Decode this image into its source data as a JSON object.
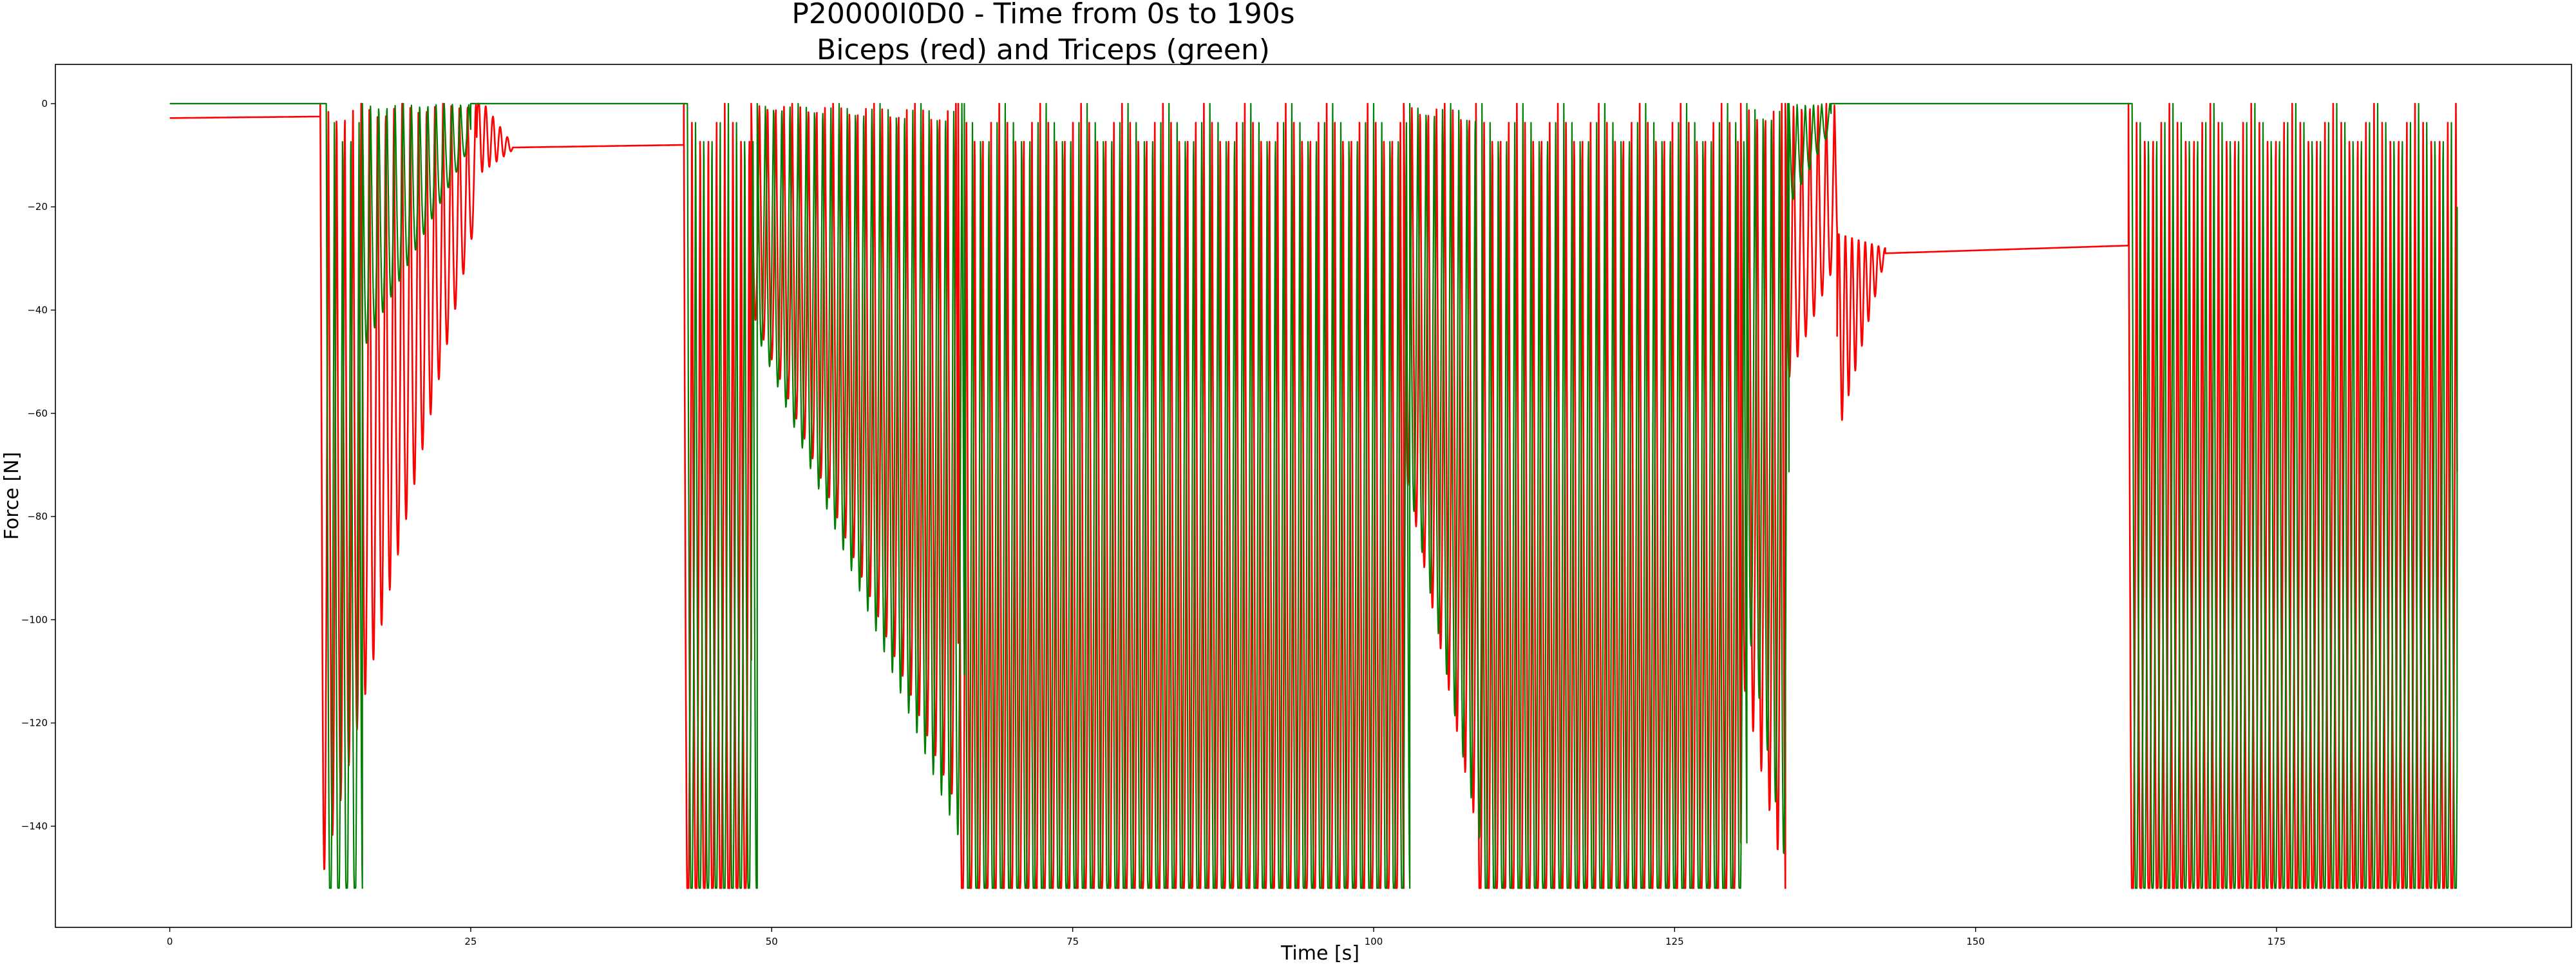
{
  "chart_data": {
    "type": "line",
    "title": "P20000I0D0 - Time from 0s to 190s",
    "subtitle": "Biceps (red) and Triceps (green)",
    "xlabel": "Time [s]",
    "ylabel": "Force [N]",
    "xlim": [
      -9.5,
      199.5
    ],
    "ylim": [
      -159.6,
      7.6
    ],
    "xticks": [
      0,
      25,
      50,
      75,
      100,
      125,
      150,
      175
    ],
    "yticks": [
      0,
      -20,
      -40,
      -60,
      -80,
      -100,
      -120,
      -140
    ],
    "xtick_labels": [
      "0",
      "25",
      "50",
      "75",
      "100",
      "125",
      "150",
      "175"
    ],
    "ytick_labels": [
      "0",
      "−20",
      "−40",
      "−60",
      "−80",
      "−100",
      "−120",
      "−140"
    ],
    "grid": false,
    "legend": "none",
    "series": [
      {
        "color": "#ff0000",
        "segments": [
          {
            "type": "flat",
            "t0": 0,
            "t1": 12.5,
            "from": -2.8,
            "to": -2.5
          },
          {
            "type": "osc",
            "t0": 12.5,
            "t1": 25.5,
            "period": 0.68,
            "peak_start": -152,
            "peak_end": -22,
            "clip": -152
          },
          {
            "type": "decay",
            "t0": 25.5,
            "t1": 28.5,
            "period": 0.6,
            "amp_start": 8,
            "amp_end": 0.5,
            "center_start": -6,
            "center_end": -8.5
          },
          {
            "type": "flat",
            "t0": 28.5,
            "t1": 42.7,
            "from": -8.5,
            "to": -8.0
          },
          {
            "type": "osc",
            "t0": 42.7,
            "t1": 48.3,
            "period": 0.68,
            "peak_start": -152,
            "peak_end": -152,
            "clip": -152
          },
          {
            "type": "osc",
            "t0": 48.3,
            "t1": 65.5,
            "period": 0.68,
            "peak_start": -40,
            "peak_end": -137,
            "clip": -152
          },
          {
            "type": "osc",
            "t0": 65.5,
            "t1": 102.5,
            "period": 0.68,
            "peak_start": -152,
            "peak_end": -152,
            "clip": -152
          },
          {
            "type": "osc",
            "t0": 102.5,
            "t1": 108.5,
            "period": 0.68,
            "peak_start": -70,
            "peak_end": -140,
            "clip": -152
          },
          {
            "type": "osc",
            "t0": 108.5,
            "t1": 130.5,
            "period": 0.68,
            "peak_start": -152,
            "peak_end": -152,
            "clip": -152
          },
          {
            "type": "osc",
            "t0": 130.5,
            "t1": 134.2,
            "period": 0.68,
            "peak_start": -110,
            "peak_end": -152,
            "clip": -152
          },
          {
            "type": "osc",
            "t0": 134.2,
            "t1": 138.5,
            "period": 0.68,
            "peak_start": -55,
            "peak_end": -30,
            "clip": -152
          },
          {
            "type": "decay",
            "t0": 138.5,
            "t1": 142.5,
            "period": 0.55,
            "amp_start": 20,
            "amp_end": 1,
            "center_start": -45,
            "center_end": -29
          },
          {
            "type": "flat",
            "t0": 142.5,
            "t1": 162.7,
            "from": -29,
            "to": -27.5
          },
          {
            "type": "osc",
            "t0": 162.7,
            "t1": 190,
            "period": 0.68,
            "peak_start": -152,
            "peak_end": -152,
            "clip": -152
          }
        ]
      },
      {
        "color": "#008000",
        "segments": [
          {
            "type": "flat",
            "t0": 0,
            "t1": 13.0,
            "from": 0,
            "to": 0
          },
          {
            "type": "osc",
            "t0": 13.0,
            "t1": 16.0,
            "period": 0.68,
            "peak_start": -152,
            "peak_end": -152,
            "clip": -152
          },
          {
            "type": "osc",
            "t0": 16.0,
            "t1": 25.0,
            "period": 0.68,
            "peak_start": -48,
            "peak_end": -8,
            "clip": -152
          },
          {
            "type": "flat",
            "t0": 25.0,
            "t1": 43.0,
            "from": 0,
            "to": 0
          },
          {
            "type": "osc",
            "t0": 43.0,
            "t1": 48.8,
            "period": 0.68,
            "peak_start": -152,
            "peak_end": -152,
            "clip": -152
          },
          {
            "type": "osc",
            "t0": 48.8,
            "t1": 66.0,
            "period": 0.68,
            "peak_start": -45,
            "peak_end": -145,
            "clip": -152
          },
          {
            "type": "osc",
            "t0": 66.0,
            "t1": 103.0,
            "period": 0.68,
            "peak_start": -152,
            "peak_end": -152,
            "clip": -152
          },
          {
            "type": "osc",
            "t0": 103.0,
            "t1": 109.0,
            "period": 0.68,
            "peak_start": -75,
            "peak_end": -145,
            "clip": -152
          },
          {
            "type": "osc",
            "t0": 109.0,
            "t1": 131.0,
            "period": 0.68,
            "peak_start": -152,
            "peak_end": -152,
            "clip": -152
          },
          {
            "type": "osc",
            "t0": 131.0,
            "t1": 134.5,
            "period": 0.68,
            "peak_start": -100,
            "peak_end": -152,
            "clip": -152
          },
          {
            "type": "osc",
            "t0": 134.5,
            "t1": 138.0,
            "period": 0.68,
            "peak_start": -20,
            "peak_end": -5,
            "clip": -152
          },
          {
            "type": "flat",
            "t0": 138.0,
            "t1": 163.0,
            "from": 0,
            "to": 0
          },
          {
            "type": "osc",
            "t0": 163.0,
            "t1": 190,
            "period": 0.68,
            "peak_start": -152,
            "peak_end": -152,
            "clip": -152
          },
          {
            "type": "flat",
            "t0": 190,
            "t1": 190,
            "from": -20,
            "to": -20
          }
        ]
      }
    ]
  }
}
